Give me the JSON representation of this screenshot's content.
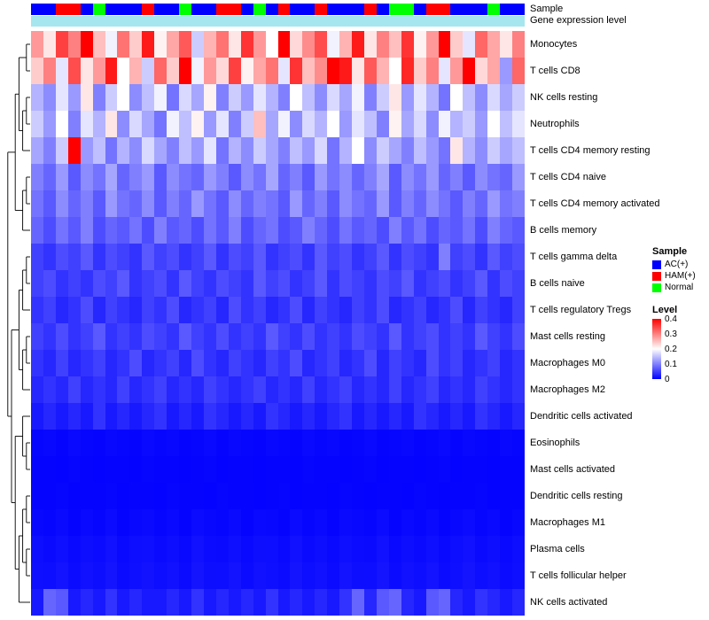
{
  "annotations": {
    "sample_label": "Sample",
    "expression_label": "Gene expression level",
    "palette": {
      "b": "#0000FF",
      "r": "#FF0000",
      "g": "#00FF00"
    },
    "expression_color": "#A6E6EE",
    "sample_colors": [
      "b",
      "b",
      "r",
      "r",
      "b",
      "g",
      "b",
      "b",
      "b",
      "r",
      "b",
      "b",
      "g",
      "b",
      "b",
      "r",
      "r",
      "b",
      "g",
      "b",
      "r",
      "b",
      "b",
      "r",
      "b",
      "b",
      "b",
      "r",
      "b",
      "g",
      "g",
      "b",
      "r",
      "r",
      "b",
      "b",
      "b",
      "g",
      "b",
      "b"
    ]
  },
  "legend": {
    "sample": {
      "title": "Sample",
      "items": [
        {
          "label": "AC(+)",
          "color": "#0000FF"
        },
        {
          "label": "HAM(+)",
          "color": "#FF0000"
        },
        {
          "label": "Normal",
          "color": "#00FF00"
        }
      ]
    },
    "level": {
      "title": "Level",
      "ticks": [
        "0.4",
        "0.3",
        "0.2",
        "0.1",
        "0"
      ],
      "gradient": [
        "#FF0000",
        "#FFFFFF",
        "#0000FF"
      ]
    }
  },
  "chart_data": {
    "type": "heatmap",
    "colormap": "blue-white-red",
    "vmin": 0,
    "vmax": 0.4,
    "n_columns": 40,
    "rows": [
      "Monocytes",
      "T cells CD8",
      "NK cells resting",
      "Neutrophils",
      "T cells CD4 memory resting",
      "T cells CD4 naive",
      "T cells CD4 memory activated",
      "B cells memory",
      "T cells gamma delta",
      "B cells naive",
      "T cells regulatory  Tregs",
      "Mast cells resting",
      "Macrophages M0",
      "Macrophages M2",
      "Dendritic cells activated",
      "Eosinophils",
      "Mast cells activated",
      "Dendritic cells resting",
      "Macrophages M1",
      "Plasma cells",
      "T cells follicular helper",
      "NK cells activated"
    ],
    "matrix": [
      [
        0.28,
        0.22,
        0.35,
        0.3,
        0.42,
        0.25,
        0.19,
        0.31,
        0.24,
        0.38,
        0.21,
        0.27,
        0.33,
        0.16,
        0.26,
        0.31,
        0.22,
        0.36,
        0.28,
        0.2,
        0.4,
        0.23,
        0.29,
        0.34,
        0.19,
        0.26,
        0.38,
        0.22,
        0.3,
        0.25,
        0.36,
        0.21,
        0.28,
        0.41,
        0.24,
        0.18,
        0.32,
        0.27,
        0.22,
        0.3
      ],
      [
        0.24,
        0.3,
        0.18,
        0.34,
        0.22,
        0.28,
        0.38,
        0.2,
        0.26,
        0.16,
        0.32,
        0.24,
        0.4,
        0.19,
        0.28,
        0.23,
        0.35,
        0.21,
        0.27,
        0.31,
        0.18,
        0.36,
        0.25,
        0.29,
        0.41,
        0.38,
        0.22,
        0.33,
        0.26,
        0.2,
        0.37,
        0.24,
        0.3,
        0.18,
        0.28,
        0.4,
        0.23,
        0.27,
        0.12,
        0.32
      ],
      [
        0.14,
        0.11,
        0.18,
        0.12,
        0.22,
        0.1,
        0.16,
        0.2,
        0.11,
        0.15,
        0.19,
        0.09,
        0.17,
        0.13,
        0.21,
        0.1,
        0.16,
        0.12,
        0.18,
        0.14,
        0.1,
        0.2,
        0.15,
        0.11,
        0.17,
        0.13,
        0.19,
        0.1,
        0.16,
        0.22,
        0.12,
        0.18,
        0.14,
        0.09,
        0.2,
        0.15,
        0.11,
        0.17,
        0.13,
        0.16
      ],
      [
        0.16,
        0.12,
        0.2,
        0.1,
        0.18,
        0.14,
        0.22,
        0.11,
        0.17,
        0.13,
        0.09,
        0.19,
        0.15,
        0.21,
        0.12,
        0.18,
        0.1,
        0.16,
        0.25,
        0.13,
        0.19,
        0.11,
        0.17,
        0.14,
        0.2,
        0.12,
        0.18,
        0.15,
        0.1,
        0.21,
        0.13,
        0.17,
        0.11,
        0.19,
        0.14,
        0.16,
        0.12,
        0.2,
        0.15,
        0.18
      ],
      [
        0.13,
        0.1,
        0.16,
        0.4,
        0.12,
        0.15,
        0.09,
        0.14,
        0.11,
        0.17,
        0.13,
        0.1,
        0.15,
        0.12,
        0.18,
        0.09,
        0.14,
        0.11,
        0.16,
        0.13,
        0.1,
        0.15,
        0.12,
        0.17,
        0.09,
        0.14,
        0.2,
        0.11,
        0.16,
        0.13,
        0.1,
        0.15,
        0.12,
        0.09,
        0.22,
        0.14,
        0.11,
        0.16,
        0.13,
        0.15
      ],
      [
        0.1,
        0.08,
        0.12,
        0.07,
        0.11,
        0.09,
        0.13,
        0.08,
        0.1,
        0.12,
        0.07,
        0.11,
        0.09,
        0.08,
        0.12,
        0.1,
        0.07,
        0.11,
        0.09,
        0.13,
        0.08,
        0.1,
        0.07,
        0.12,
        0.09,
        0.11,
        0.08,
        0.1,
        0.13,
        0.07,
        0.11,
        0.09,
        0.12,
        0.08,
        0.1,
        0.07,
        0.11,
        0.09,
        0.08,
        0.12
      ],
      [
        0.09,
        0.07,
        0.11,
        0.08,
        0.1,
        0.07,
        0.12,
        0.09,
        0.08,
        0.11,
        0.07,
        0.1,
        0.08,
        0.12,
        0.09,
        0.07,
        0.11,
        0.08,
        0.1,
        0.09,
        0.07,
        0.12,
        0.08,
        0.1,
        0.07,
        0.11,
        0.09,
        0.08,
        0.12,
        0.07,
        0.1,
        0.08,
        0.11,
        0.09,
        0.07,
        0.1,
        0.08,
        0.12,
        0.09,
        0.1
      ],
      [
        0.08,
        0.06,
        0.09,
        0.07,
        0.1,
        0.06,
        0.08,
        0.07,
        0.09,
        0.06,
        0.1,
        0.07,
        0.08,
        0.06,
        0.09,
        0.07,
        0.1,
        0.06,
        0.08,
        0.09,
        0.06,
        0.07,
        0.1,
        0.08,
        0.06,
        0.09,
        0.07,
        0.08,
        0.06,
        0.1,
        0.07,
        0.09,
        0.06,
        0.08,
        0.07,
        0.09,
        0.06,
        0.1,
        0.08,
        0.07
      ],
      [
        0.05,
        0.04,
        0.06,
        0.05,
        0.07,
        0.04,
        0.06,
        0.05,
        0.04,
        0.07,
        0.05,
        0.06,
        0.04,
        0.05,
        0.07,
        0.04,
        0.06,
        0.05,
        0.07,
        0.04,
        0.05,
        0.06,
        0.04,
        0.07,
        0.05,
        0.06,
        0.04,
        0.05,
        0.07,
        0.04,
        0.06,
        0.05,
        0.04,
        0.1,
        0.05,
        0.06,
        0.04,
        0.07,
        0.05,
        0.06
      ],
      [
        0.05,
        0.06,
        0.04,
        0.05,
        0.04,
        0.06,
        0.05,
        0.07,
        0.04,
        0.05,
        0.06,
        0.04,
        0.07,
        0.05,
        0.04,
        0.06,
        0.05,
        0.04,
        0.07,
        0.05,
        0.06,
        0.04,
        0.05,
        0.07,
        0.04,
        0.06,
        0.05,
        0.04,
        0.06,
        0.05,
        0.07,
        0.04,
        0.05,
        0.06,
        0.04,
        0.05,
        0.07,
        0.04,
        0.06,
        0.05
      ],
      [
        0.04,
        0.05,
        0.03,
        0.04,
        0.06,
        0.03,
        0.05,
        0.04,
        0.03,
        0.05,
        0.04,
        0.06,
        0.03,
        0.04,
        0.05,
        0.03,
        0.06,
        0.04,
        0.05,
        0.03,
        0.04,
        0.06,
        0.03,
        0.05,
        0.04,
        0.03,
        0.05,
        0.04,
        0.06,
        0.03,
        0.04,
        0.05,
        0.03,
        0.04,
        0.06,
        0.03,
        0.05,
        0.04,
        0.03,
        0.05
      ],
      [
        0.05,
        0.04,
        0.06,
        0.04,
        0.05,
        0.07,
        0.04,
        0.05,
        0.04,
        0.06,
        0.05,
        0.04,
        0.07,
        0.05,
        0.04,
        0.06,
        0.04,
        0.05,
        0.04,
        0.07,
        0.05,
        0.04,
        0.06,
        0.04,
        0.05,
        0.04,
        0.06,
        0.05,
        0.04,
        0.07,
        0.04,
        0.05,
        0.06,
        0.04,
        0.05,
        0.04,
        0.07,
        0.05,
        0.04,
        0.06
      ],
      [
        0.04,
        0.03,
        0.05,
        0.03,
        0.04,
        0.05,
        0.03,
        0.04,
        0.06,
        0.03,
        0.04,
        0.05,
        0.03,
        0.06,
        0.04,
        0.03,
        0.05,
        0.04,
        0.03,
        0.05,
        0.04,
        0.06,
        0.03,
        0.04,
        0.05,
        0.03,
        0.04,
        0.06,
        0.03,
        0.05,
        0.04,
        0.03,
        0.06,
        0.04,
        0.05,
        0.03,
        0.04,
        0.05,
        0.03,
        0.04
      ],
      [
        0.03,
        0.04,
        0.03,
        0.05,
        0.03,
        0.04,
        0.03,
        0.05,
        0.03,
        0.04,
        0.05,
        0.03,
        0.04,
        0.03,
        0.05,
        0.04,
        0.03,
        0.04,
        0.05,
        0.03,
        0.04,
        0.03,
        0.05,
        0.03,
        0.04,
        0.05,
        0.03,
        0.04,
        0.03,
        0.05,
        0.03,
        0.04,
        0.05,
        0.03,
        0.04,
        0.03,
        0.05,
        0.04,
        0.03,
        0.04
      ],
      [
        0.02,
        0.03,
        0.02,
        0.03,
        0.02,
        0.04,
        0.02,
        0.03,
        0.02,
        0.03,
        0.04,
        0.02,
        0.03,
        0.02,
        0.04,
        0.03,
        0.02,
        0.03,
        0.02,
        0.04,
        0.03,
        0.02,
        0.03,
        0.02,
        0.03,
        0.04,
        0.02,
        0.03,
        0.02,
        0.03,
        0.02,
        0.04,
        0.03,
        0.02,
        0.03,
        0.02,
        0.04,
        0.03,
        0.02,
        0.03
      ],
      [
        0.005,
        0.006,
        0.004,
        0.007,
        0.005,
        0.004,
        0.006,
        0.005,
        0.004,
        0.007,
        0.005,
        0.006,
        0.004,
        0.005,
        0.007,
        0.004,
        0.006,
        0.005,
        0.004,
        0.006,
        0.005,
        0.004,
        0.007,
        0.005,
        0.006,
        0.004,
        0.005,
        0.007,
        0.004,
        0.005,
        0.006,
        0.004,
        0.005,
        0.007,
        0.004,
        0.006,
        0.005,
        0.004,
        0.006,
        0.005
      ],
      [
        0.003,
        0.004,
        0.002,
        0.005,
        0.003,
        0.002,
        0.004,
        0.003,
        0.002,
        0.005,
        0.003,
        0.004,
        0.002,
        0.003,
        0.005,
        0.002,
        0.004,
        0.003,
        0.002,
        0.004,
        0.003,
        0.002,
        0.005,
        0.003,
        0.004,
        0.002,
        0.003,
        0.005,
        0.002,
        0.003,
        0.004,
        0.002,
        0.003,
        0.005,
        0.002,
        0.004,
        0.003,
        0.002,
        0.004,
        0.003
      ],
      [
        0.004,
        0.003,
        0.005,
        0.002,
        0.004,
        0.003,
        0.005,
        0.002,
        0.004,
        0.003,
        0.002,
        0.005,
        0.003,
        0.004,
        0.002,
        0.005,
        0.003,
        0.004,
        0.002,
        0.003,
        0.005,
        0.002,
        0.004,
        0.003,
        0.002,
        0.005,
        0.004,
        0.002,
        0.003,
        0.004,
        0.002,
        0.005,
        0.003,
        0.002,
        0.004,
        0.003,
        0.005,
        0.002,
        0.004,
        0.003
      ],
      [
        0.006,
        0.005,
        0.008,
        0.004,
        0.007,
        0.005,
        0.009,
        0.004,
        0.006,
        0.008,
        0.005,
        0.007,
        0.004,
        0.009,
        0.006,
        0.005,
        0.008,
        0.004,
        0.007,
        0.006,
        0.004,
        0.009,
        0.005,
        0.007,
        0.004,
        0.008,
        0.006,
        0.005,
        0.009,
        0.004,
        0.007,
        0.005,
        0.008,
        0.004,
        0.006,
        0.009,
        0.005,
        0.007,
        0.004,
        0.006
      ],
      [
        0.01,
        0.008,
        0.012,
        0.007,
        0.011,
        0.009,
        0.013,
        0.007,
        0.01,
        0.012,
        0.008,
        0.011,
        0.007,
        0.013,
        0.009,
        0.008,
        0.012,
        0.007,
        0.011,
        0.01,
        0.007,
        0.013,
        0.008,
        0.011,
        0.007,
        0.012,
        0.009,
        0.008,
        0.013,
        0.007,
        0.011,
        0.008,
        0.012,
        0.007,
        0.01,
        0.013,
        0.008,
        0.011,
        0.007,
        0.01
      ],
      [
        0.012,
        0.01,
        0.015,
        0.009,
        0.013,
        0.011,
        0.016,
        0.009,
        0.012,
        0.014,
        0.01,
        0.013,
        0.009,
        0.016,
        0.011,
        0.01,
        0.015,
        0.009,
        0.013,
        0.012,
        0.009,
        0.016,
        0.01,
        0.013,
        0.009,
        0.015,
        0.011,
        0.01,
        0.016,
        0.009,
        0.013,
        0.01,
        0.015,
        0.009,
        0.012,
        0.016,
        0.01,
        0.013,
        0.009,
        0.012
      ],
      [
        0.02,
        0.08,
        0.07,
        0.02,
        0.03,
        0.02,
        0.04,
        0.02,
        0.03,
        0.02,
        0.02,
        0.03,
        0.02,
        0.04,
        0.02,
        0.03,
        0.02,
        0.03,
        0.02,
        0.04,
        0.02,
        0.03,
        0.02,
        0.03,
        0.02,
        0.04,
        0.08,
        0.03,
        0.07,
        0.08,
        0.03,
        0.02,
        0.07,
        0.08,
        0.03,
        0.02,
        0.04,
        0.03,
        0.02,
        0.03
      ]
    ]
  }
}
